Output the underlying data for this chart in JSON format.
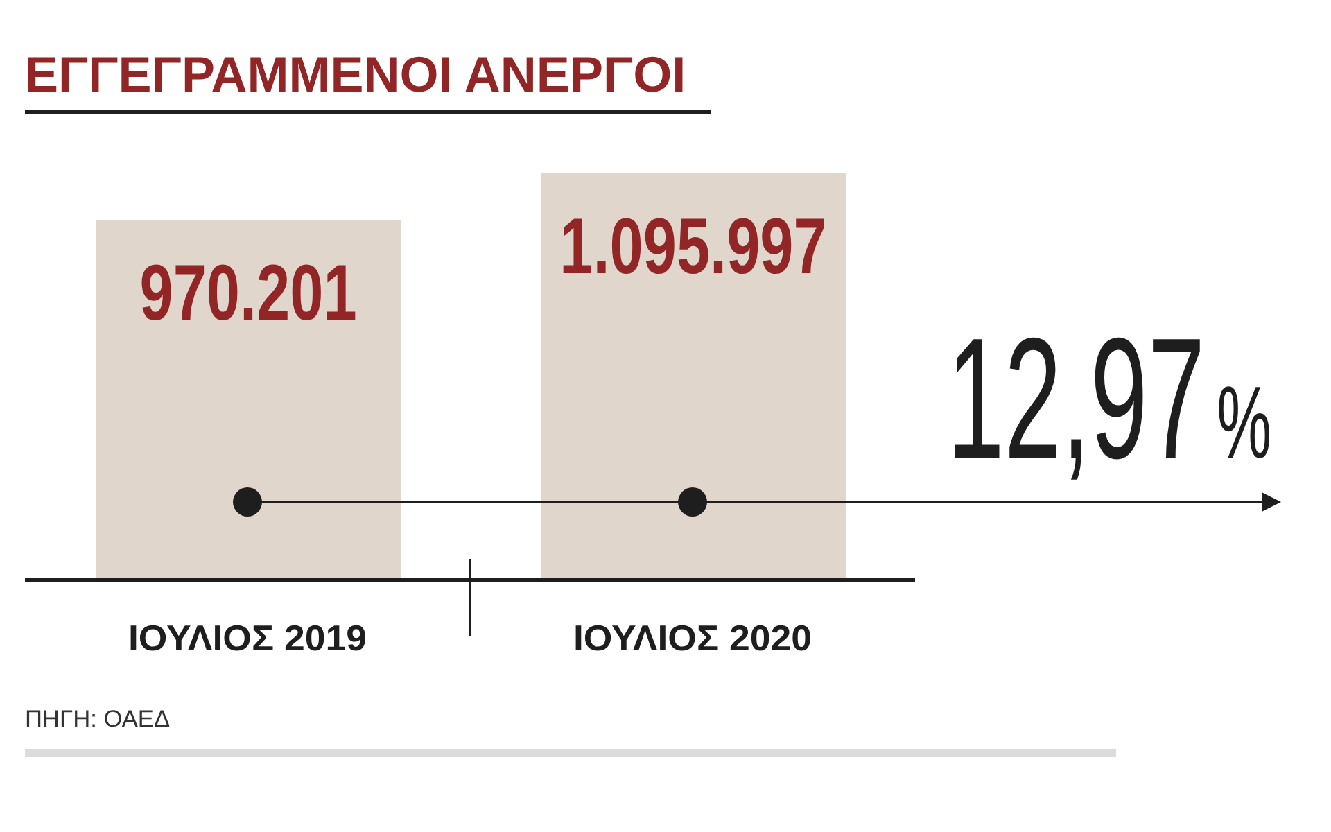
{
  "chart_data": {
    "type": "bar",
    "title": "ΕΓΓΕΓΡΑΜΜΕΝΟΙ ΑΝΕΡΓΟΙ",
    "categories": [
      "ΙΟΥΛΙΟΣ 2019",
      "ΙΟΥΛΙΟΣ 2020"
    ],
    "values": [
      970201,
      1095997
    ],
    "color": "#e0d6cb",
    "value_labels": [
      "970.201",
      "1.095.997"
    ],
    "annotations": [
      "12,97%",
      "ΠΗΓΗ: ΟΑΕΔ"
    ]
  }
}
